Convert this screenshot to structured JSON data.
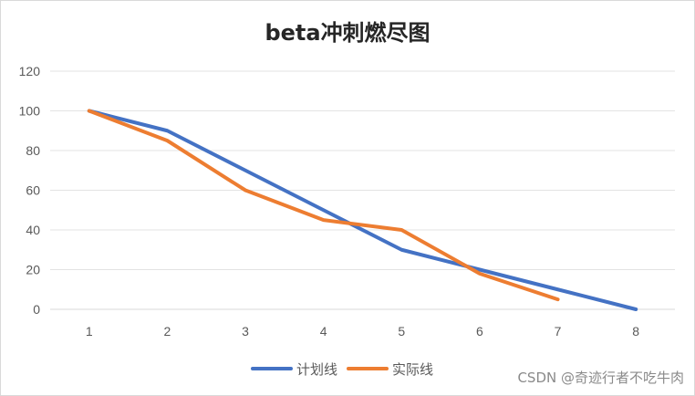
{
  "chart_data": {
    "type": "line",
    "title": "beta冲刺燃尽图",
    "categories": [
      "1",
      "2",
      "3",
      "4",
      "5",
      "6",
      "7",
      "8"
    ],
    "ylim": [
      0,
      120
    ],
    "yticks": [
      0,
      20,
      40,
      60,
      80,
      100,
      120
    ],
    "grid": true,
    "legend": "bottom-center",
    "series": [
      {
        "name": "计划线",
        "color": "#4472c4",
        "values": [
          100,
          90,
          70,
          50,
          30,
          20,
          10,
          0
        ]
      },
      {
        "name": "实际线",
        "color": "#ed7d31",
        "values": [
          100,
          85,
          60,
          45,
          40,
          18,
          5,
          null
        ]
      }
    ]
  },
  "watermark": "CSDN @奇迹行者不吃牛肉"
}
